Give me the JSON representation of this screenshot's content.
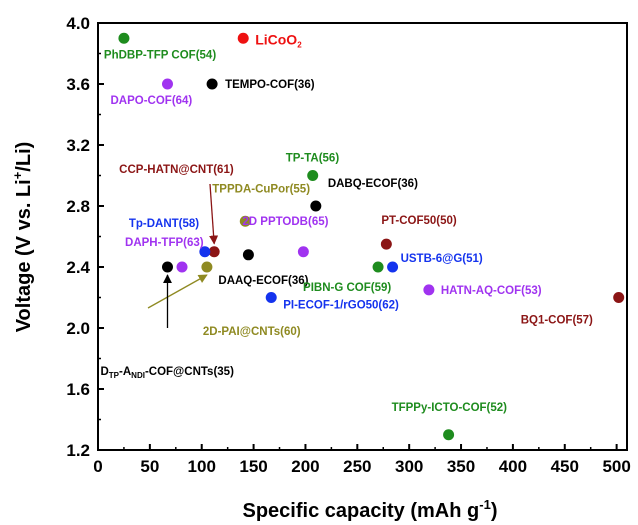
{
  "chart_data": {
    "type": "scatter",
    "xlabel": "Specific capacity (mAh g",
    "xlabel_sup": "-1",
    "xlabel_close": ")",
    "ylabel": "Voltage (V vs. Li",
    "ylabel_sup": "+",
    "ylabel_close": "/Li)",
    "xlim": [
      0,
      510
    ],
    "ylim": [
      1.2,
      4.0
    ],
    "xticks": [
      "0",
      "50",
      "100",
      "150",
      "200",
      "250",
      "300",
      "350",
      "400",
      "450",
      "500"
    ],
    "yticks": [
      "1.2",
      "1.6",
      "2.0",
      "2.4",
      "2.8",
      "3.2",
      "3.6",
      "4.0"
    ],
    "grid": false,
    "colors": {
      "green": "#1e8c1e",
      "red": "#ee1111",
      "black": "#000000",
      "purple": "#a033f0",
      "darkred": "#8b1515",
      "olive": "#8f8a22",
      "blue": "#1433ee"
    },
    "points": [
      {
        "label": "PhDBP-TFP COF(54)",
        "x": 25,
        "y": 3.9,
        "color": "green"
      },
      {
        "label": "LiCoO",
        "label_sub": "2",
        "x": 140,
        "y": 3.9,
        "color": "red"
      },
      {
        "label": "TEMPO-COF(36)",
        "x": 110,
        "y": 3.6,
        "color": "black"
      },
      {
        "label": "DAPO-COF(64)",
        "x": 67,
        "y": 3.6,
        "color": "purple"
      },
      {
        "label": "TP-TA(56)",
        "x": 207,
        "y": 3.0,
        "color": "green"
      },
      {
        "label": "CCP-HATN@CNT(61)",
        "x": 112,
        "y": 2.5,
        "color": "darkred"
      },
      {
        "label": "TPPDA-CuPor(55)",
        "x": 142,
        "y": 2.7,
        "color": "olive"
      },
      {
        "label": "DABQ-ECOF(36)",
        "x": 210,
        "y": 2.8,
        "color": "black"
      },
      {
        "label": "Tp-DANT(58)",
        "x": 103,
        "y": 2.5,
        "color": "blue"
      },
      {
        "label": "2D PPTODB(65)",
        "x": 198,
        "y": 2.5,
        "color": "purple"
      },
      {
        "label": "PT-COF50(50)",
        "x": 278,
        "y": 2.55,
        "color": "darkred"
      },
      {
        "label": "DAPH-TFP(63)",
        "x": 81,
        "y": 2.4,
        "color": "purple"
      },
      {
        "label": "DAAQ-ECOF(36)",
        "x": 145,
        "y": 2.48,
        "color": "black"
      },
      {
        "label": "USTB-6@G(51)",
        "x": 284,
        "y": 2.4,
        "color": "blue"
      },
      {
        "label": "PIBN-G COF(59)",
        "x": 270,
        "y": 2.4,
        "color": "green"
      },
      {
        "label": "HATN-AQ-COF(53)",
        "x": 319,
        "y": 2.25,
        "color": "purple"
      },
      {
        "label": "PI-ECOF-1/rGO50(62)",
        "x": 167,
        "y": 2.2,
        "color": "blue"
      },
      {
        "label": "BQ1-COF(57)",
        "x": 502,
        "y": 2.2,
        "color": "darkred"
      },
      {
        "label": "2D-PAI@CNTs(60)",
        "x": 105,
        "y": 2.4,
        "color": "olive"
      },
      {
        "label": "D",
        "label_sub": "TP",
        "label_mid": "-A",
        "label_sub2": "NDI",
        "label_end": "-COF@CNTs(35)",
        "x": 67,
        "y": 2.4,
        "color": "black"
      },
      {
        "label": "TFPPy-ICTO-COF(52)",
        "x": 338,
        "y": 1.3,
        "color": "green"
      }
    ]
  }
}
